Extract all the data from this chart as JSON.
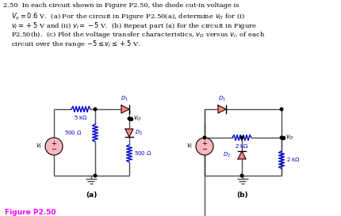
{
  "bg_color": "#ffffff",
  "text_color": "#000000",
  "wire_color": "#4d4d4d",
  "resistor_color": "#0000cc",
  "diode_fill": "#ff8888",
  "source_fill": "#ffb6c1",
  "label_color": "#ff00ff",
  "fig_label": "Figure P2.50",
  "label_a": "(a)",
  "label_b": "(b)",
  "top_text_lines": [
    "2.50  In each circuit shown in Figure P2.50, the diode cut-in voltage is",
    "$V_\\gamma = 0.6$ V.  (a) For the circuit in Figure P2.50(a), determine $v_O$ for (i)",
    "$v_I = +5$ V and (ii) $v_I = -5$ V.  (b) Repeat part (a) for the circuit in Figure",
    "P2.50(b).  (c) Plot the voltage transfer characteristics, $v_O$ versus $v_I$, of each",
    "circuit over the range $-5 \\leq v_I \\leq +5$ V."
  ]
}
